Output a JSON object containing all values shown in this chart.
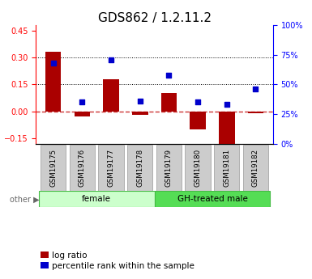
{
  "title": "GDS862 / 1.2.11.2",
  "samples": [
    "GSM19175",
    "GSM19176",
    "GSM19177",
    "GSM19178",
    "GSM19179",
    "GSM19180",
    "GSM19181",
    "GSM19182"
  ],
  "log_ratio": [
    0.33,
    -0.03,
    0.18,
    -0.02,
    0.1,
    -0.1,
    -0.2,
    -0.01
  ],
  "percentile_rank": [
    68,
    35,
    71,
    36,
    58,
    35,
    33,
    46
  ],
  "groups": [
    {
      "label": "female",
      "start": 0,
      "end": 4,
      "color": "#ccffcc",
      "edge_color": "#44bb44"
    },
    {
      "label": "GH-treated male",
      "start": 4,
      "end": 8,
      "color": "#55dd55",
      "edge_color": "#44bb44"
    }
  ],
  "ylim_left": [
    -0.18,
    0.48
  ],
  "ylim_right": [
    0,
    100
  ],
  "yticks_left": [
    -0.15,
    0,
    0.15,
    0.3,
    0.45
  ],
  "yticks_right": [
    0,
    25,
    50,
    75,
    100
  ],
  "hlines": [
    0.15,
    0.3
  ],
  "bar_color": "#aa0000",
  "dot_color": "#0000cc",
  "zero_line_color": "#cc3333",
  "title_fontsize": 11,
  "tick_fontsize": 7,
  "legend_fontsize": 7.5,
  "bar_width": 0.55
}
